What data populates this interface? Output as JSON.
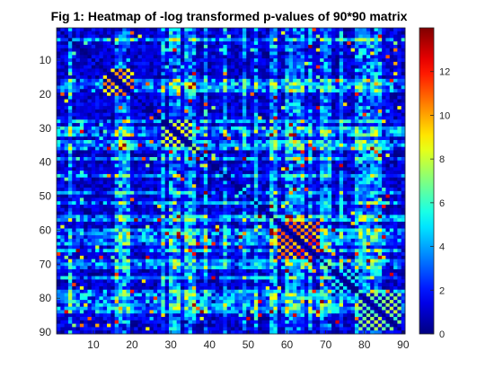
{
  "chart_data": {
    "type": "heatmap",
    "title": "Fig 1: Heatmap of -log transformed p-values of 90*90 matrix",
    "xlabel": "",
    "ylabel": "",
    "rows": 90,
    "cols": 90,
    "xlim": [
      0.5,
      90.5
    ],
    "ylim": [
      0.5,
      90.5
    ],
    "y_direction": "reversed",
    "x_ticks": [
      10,
      20,
      30,
      40,
      50,
      60,
      70,
      80,
      90
    ],
    "y_ticks": [
      10,
      20,
      30,
      40,
      50,
      60,
      70,
      80,
      90
    ],
    "colorbar": {
      "colormap": "jet",
      "range": [
        0,
        14
      ],
      "ticks": [
        0,
        2,
        4,
        6,
        8,
        10,
        12
      ],
      "placement": "right"
    },
    "grid": false,
    "values_note": "",
    "hot_rows": [
      17,
      19,
      31,
      39,
      44,
      49,
      57,
      60,
      61,
      62,
      63,
      64,
      66,
      69,
      78,
      79,
      80,
      81,
      82,
      83,
      84
    ],
    "hot_cols": [
      4,
      16,
      17,
      18,
      28,
      30,
      31,
      32,
      34,
      35,
      36,
      52,
      56,
      57,
      61,
      63,
      70,
      71,
      74,
      78,
      79,
      80,
      81,
      83,
      84
    ],
    "checker_blocks": [
      {
        "rows": [
          58,
          68
        ],
        "cols": [
          58,
          68
        ],
        "level": 12
      },
      {
        "rows": [
          13,
          20
        ],
        "cols": [
          13,
          20
        ],
        "level": 11
      },
      {
        "rows": [
          28,
          35
        ],
        "cols": [
          28,
          35
        ],
        "level": 9
      },
      {
        "rows": [
          79,
          89
        ],
        "cols": [
          79,
          89
        ],
        "level": 8
      },
      {
        "rows": [
          72,
          78
        ],
        "cols": [
          72,
          78
        ],
        "level": 6
      }
    ]
  }
}
